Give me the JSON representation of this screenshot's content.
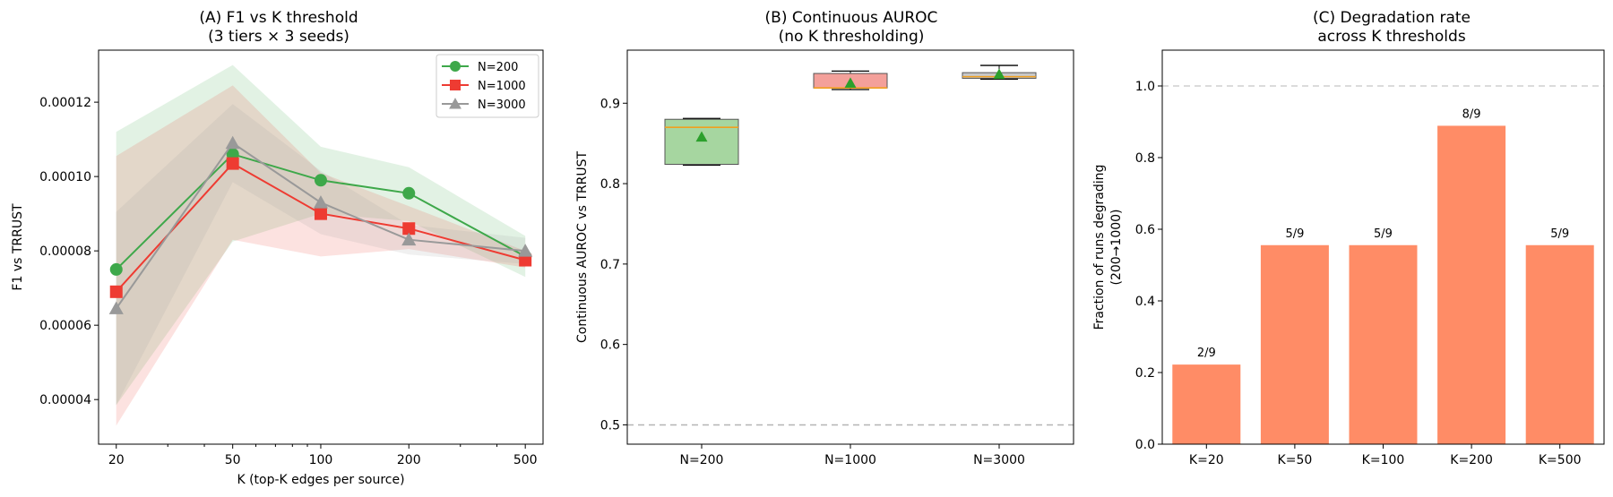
{
  "chart_data": [
    {
      "type": "line",
      "title": "(A) F1 vs K threshold",
      "subtitle": "(3 tiers × 3 seeds)",
      "xlabel": "K (top-K edges per source)",
      "ylabel": "F1 vs TRRUST",
      "x_scale": "log",
      "x": [
        20,
        50,
        100,
        200,
        500
      ],
      "x_tick_labels": [
        "20",
        "50",
        "100",
        "200",
        "500"
      ],
      "ylim": [
        2.8e-05,
        0.000134
      ],
      "y_ticks": [
        4e-05,
        6e-05,
        8e-05,
        0.0001,
        0.00012
      ],
      "y_tick_labels": [
        "0.00004",
        "0.00006",
        "0.00008",
        "0.00010",
        "0.00012"
      ],
      "legend_position": "top-right",
      "grid": false,
      "series": [
        {
          "name": "N=200",
          "color": "#3ea84a",
          "marker": "circle",
          "values": [
            7.5e-05,
            0.000106,
            9.9e-05,
            9.55e-05,
            7.85e-05
          ],
          "band_lower": [
            3.85e-05,
            8.25e-05,
            9e-05,
            8.8e-05,
            7.3e-05
          ],
          "band_upper": [
            0.000112,
            0.00013,
            0.000108,
            0.0001025,
            8.4e-05
          ]
        },
        {
          "name": "N=1000",
          "color": "#ee3b32",
          "marker": "square",
          "values": [
            6.9e-05,
            0.0001035,
            9e-05,
            8.6e-05,
            7.75e-05
          ],
          "band_lower": [
            3.3e-05,
            8.3e-05,
            7.85e-05,
            8.05e-05,
            7.55e-05
          ],
          "band_upper": [
            0.0001055,
            0.0001245,
            0.000101,
            9.2e-05,
            8e-05
          ]
        },
        {
          "name": "N=3000",
          "color": "#999999",
          "marker": "triangle",
          "values": [
            6.45e-05,
            0.000109,
            9.3e-05,
            8.3e-05,
            8e-05
          ],
          "band_lower": [
            3.85e-05,
            9.85e-05,
            8.45e-05,
            7.9e-05,
            7.65e-05
          ],
          "band_upper": [
            9.05e-05,
            0.0001195,
            0.0001015,
            8.7e-05,
            8.35e-05
          ]
        }
      ]
    },
    {
      "type": "box",
      "title": "(B) Continuous AUROC",
      "subtitle": "(no K thresholding)",
      "xlabel": "",
      "ylabel": "Continuous AUROC vs TRRUST",
      "ylim": [
        0.476,
        0.966
      ],
      "y_ticks": [
        0.5,
        0.6,
        0.7,
        0.8,
        0.9
      ],
      "y_tick_labels": [
        "0.5",
        "0.6",
        "0.7",
        "0.8",
        "0.9"
      ],
      "reference_line": 0.5,
      "grid": false,
      "categories": [
        "N=200",
        "N=1000",
        "N=3000"
      ],
      "boxes": [
        {
          "whisker_low": 0.823,
          "q1": 0.824,
          "median": 0.87,
          "q3": 0.88,
          "whisker_high": 0.881,
          "mean": 0.858,
          "color": "#a6d6a0"
        },
        {
          "whisker_low": 0.917,
          "q1": 0.919,
          "median": 0.919,
          "q3": 0.937,
          "whisker_high": 0.94,
          "mean": 0.925,
          "color": "#f4a09a"
        },
        {
          "whisker_low": 0.93,
          "q1": 0.931,
          "median": 0.933,
          "q3": 0.938,
          "whisker_high": 0.947,
          "mean": 0.936,
          "color": "#c8c8c8"
        }
      ],
      "median_color": "#f0a020",
      "mean_marker_color": "#2ca02c"
    },
    {
      "type": "bar",
      "title": "(C) Degradation rate",
      "subtitle": "across K thresholds",
      "xlabel": "",
      "ylabel": "Fraction of runs degrading",
      "ylabel2": "(200→1000)",
      "ylim": [
        0,
        1.1
      ],
      "y_ticks": [
        0.0,
        0.2,
        0.4,
        0.6,
        0.8,
        1.0
      ],
      "y_tick_labels": [
        "0.0",
        "0.2",
        "0.4",
        "0.6",
        "0.8",
        "1.0"
      ],
      "reference_line": 1.0,
      "grid": false,
      "bar_color": "#ff8c66",
      "categories": [
        "K=20",
        "K=50",
        "K=100",
        "K=200",
        "K=500"
      ],
      "values": [
        0.2222,
        0.5556,
        0.5556,
        0.8889,
        0.5556
      ],
      "data_labels": [
        "2/9",
        "5/9",
        "5/9",
        "8/9",
        "5/9"
      ]
    }
  ]
}
